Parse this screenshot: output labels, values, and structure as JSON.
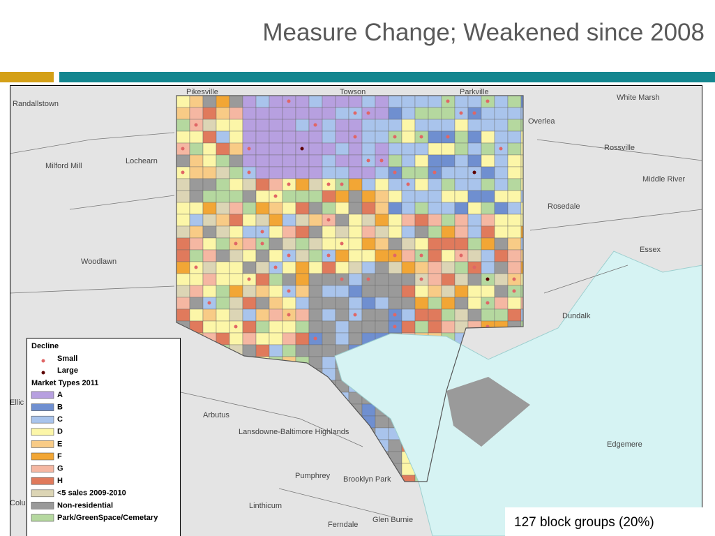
{
  "title": "Measure Change; Weakened since 2008",
  "places": [
    "Randallstown",
    "Pikesville",
    "Towson",
    "Parkville",
    "White Marsh",
    "Overlea",
    "Rossville",
    "Milford Mill",
    "Lochearn",
    "Middle River",
    "Rosedale",
    "Essex",
    "Woodlawn",
    "Dundalk",
    "Ellic",
    "Arbutus",
    "Lansdowne-Baltimore Highlands",
    "Edgemere",
    "Pumphrey",
    "Brooklyn Park",
    "Colu",
    "Linthicum",
    "Ferndale",
    "Glen Burnie"
  ],
  "legend": {
    "decline_title": "Decline",
    "decline_items": [
      {
        "label": "Small",
        "color": "#e06666"
      },
      {
        "label": "Large",
        "color": "#5c0000"
      }
    ],
    "market_title": "Market Types 2011",
    "market_items": [
      {
        "label": "A",
        "color": "#b7a0e0"
      },
      {
        "label": "B",
        "color": "#6f8fd0"
      },
      {
        "label": "C",
        "color": "#a9c4ec"
      },
      {
        "label": "D",
        "color": "#fcf6a8"
      },
      {
        "label": "E",
        "color": "#f8cb86"
      },
      {
        "label": "F",
        "color": "#f2a635"
      },
      {
        "label": "G",
        "color": "#f5b7a2"
      },
      {
        "label": "H",
        "color": "#e07a5c"
      },
      {
        "label": "<5 sales 2009-2010",
        "color": "#dcd5b5"
      },
      {
        "label": "Non-residential",
        "color": "#9a9a9a"
      },
      {
        "label": "Park/GreenSpace/Cemetary",
        "color": "#b5d89f"
      }
    ]
  },
  "caption": "127 block groups (20%)"
}
